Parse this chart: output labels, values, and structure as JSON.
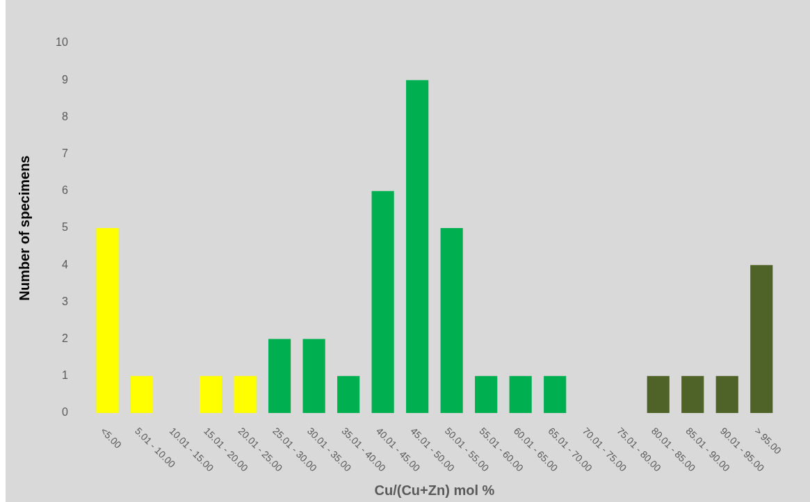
{
  "chart_data": {
    "type": "bar",
    "xlabel": "Cu/(Cu+Zn) mol %",
    "ylabel": "Number of specimens",
    "categories": [
      "<5.00",
      "5.01 - 10.00",
      "10.01 - 15.00",
      "15.01 - 20.00",
      "20.01 - 25.00",
      "25.01 - 30.00",
      "30.01 - 35.00",
      "35.01 - 40.00",
      "40.01 - 45.00",
      "45.01 - 50.00",
      "50.01 - 55.00",
      "55.01 - 60.00",
      "60.01 - 65.00",
      "65.01 - 70.00",
      "70.01 - 75.00",
      "75.01 - 80.00",
      "80.01 - 85.00",
      "85.01 - 90.00",
      "90.01 - 95.00",
      "> 95.00"
    ],
    "values": [
      5,
      1,
      0,
      1,
      1,
      2,
      2,
      1,
      6,
      9,
      5,
      1,
      1,
      1,
      0,
      0,
      1,
      1,
      1,
      4
    ],
    "colors": [
      "#ffff00",
      "#ffff00",
      "#ffff00",
      "#ffff00",
      "#ffff00",
      "#00b050",
      "#00b050",
      "#00b050",
      "#00b050",
      "#00b050",
      "#00b050",
      "#00b050",
      "#00b050",
      "#00b050",
      "#00b050",
      "#4f6228",
      "#4f6228",
      "#4f6228",
      "#4f6228",
      "#4f6228"
    ],
    "ylim": [
      0,
      10
    ],
    "yticks": [
      0,
      1,
      2,
      3,
      4,
      5,
      6,
      7,
      8,
      9,
      10
    ],
    "grid": false,
    "legend": false
  }
}
